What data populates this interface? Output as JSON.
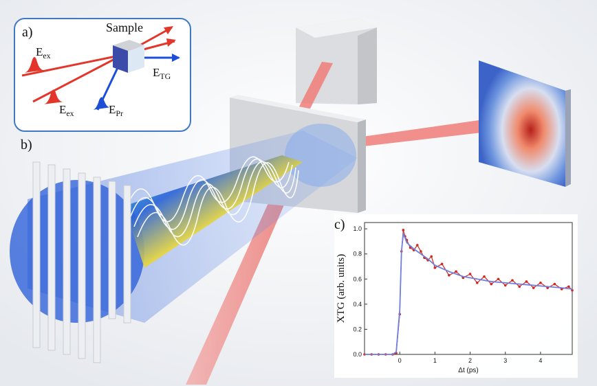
{
  "panel_a": {
    "label": "a)",
    "sample_label": "Sample",
    "e_ex_1": {
      "main": "E",
      "sub": "ex"
    },
    "e_ex_2": {
      "main": "E",
      "sub": "ex"
    },
    "e_pr": {
      "main": "E",
      "sub": "Pr"
    },
    "e_tg": {
      "main": "E",
      "sub": "TG"
    }
  },
  "panel_b": {
    "label": "b)"
  },
  "panel_c": {
    "label": "c)"
  },
  "colors": {
    "pump_beam": "#e2362b",
    "probe_beam": "#1c4fd6",
    "signal_beam": "#f08a86",
    "frame": "#3f79c3"
  },
  "chart_data": {
    "type": "line",
    "xlabel": "Δt (ps)",
    "ylabel": "XTG (arb. units)",
    "xlim": [
      -1.0,
      4.9
    ],
    "ylim": [
      0.0,
      1.05
    ],
    "x_ticks": [
      "0",
      "1",
      "2",
      "3",
      "4"
    ],
    "y_ticks": [
      "0.0",
      "0.2",
      "0.4",
      "0.6",
      "0.8",
      "1.0"
    ],
    "series": [
      {
        "kind": "data",
        "color": "#d0281f",
        "x": [
          -1.0,
          -0.8,
          -0.6,
          -0.4,
          -0.2,
          -0.1,
          0.0,
          0.05,
          0.1,
          0.15,
          0.2,
          0.3,
          0.4,
          0.5,
          0.6,
          0.7,
          0.8,
          0.9,
          1.0,
          1.2,
          1.4,
          1.6,
          1.8,
          2.0,
          2.2,
          2.4,
          2.6,
          2.8,
          3.0,
          3.2,
          3.4,
          3.6,
          3.8,
          4.0,
          4.2,
          4.4,
          4.6,
          4.8,
          4.9
        ],
        "y": [
          0.0,
          0.0,
          0.0,
          0.0,
          0.0,
          0.01,
          0.32,
          0.82,
          0.99,
          0.94,
          0.91,
          0.85,
          0.83,
          0.87,
          0.82,
          0.77,
          0.75,
          0.78,
          0.69,
          0.72,
          0.63,
          0.66,
          0.61,
          0.64,
          0.57,
          0.62,
          0.56,
          0.6,
          0.55,
          0.59,
          0.54,
          0.58,
          0.53,
          0.57,
          0.53,
          0.56,
          0.52,
          0.54,
          0.51
        ]
      },
      {
        "kind": "fit",
        "color": "#6f7fe0",
        "x": [
          -1.0,
          -0.6,
          -0.2,
          -0.1,
          0.0,
          0.05,
          0.1,
          0.15,
          0.2,
          0.4,
          0.6,
          0.8,
          1.0,
          1.4,
          1.8,
          2.2,
          2.6,
          3.0,
          3.4,
          3.8,
          4.2,
          4.6,
          4.9
        ],
        "y": [
          0.0,
          0.0,
          0.0,
          0.02,
          0.35,
          0.82,
          0.96,
          0.93,
          0.89,
          0.84,
          0.8,
          0.76,
          0.71,
          0.66,
          0.62,
          0.6,
          0.58,
          0.57,
          0.56,
          0.55,
          0.54,
          0.53,
          0.52
        ]
      }
    ],
    "grid": false,
    "legend": "none"
  }
}
